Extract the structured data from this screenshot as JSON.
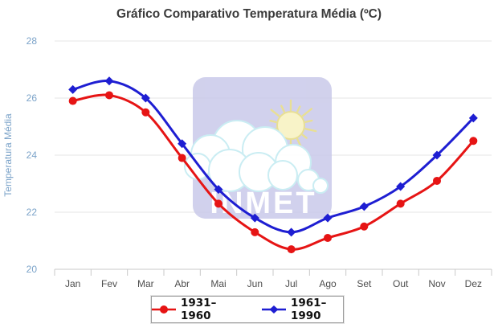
{
  "chart_data": {
    "type": "line",
    "title": "Gráfico Comparativo Temperatura Média (ºC)",
    "ylabel": "Temperatura Média",
    "xlabel": "",
    "categories": [
      "Jan",
      "Fev",
      "Mar",
      "Abr",
      "Mai",
      "Jun",
      "Jul",
      "Ago",
      "Set",
      "Out",
      "Nov",
      "Dez"
    ],
    "series": [
      {
        "name": "1931–1960",
        "color": "#e61414",
        "marker": "circle",
        "values": [
          25.9,
          26.1,
          25.5,
          23.9,
          22.3,
          21.3,
          20.7,
          21.1,
          21.5,
          22.3,
          23.1,
          24.5
        ]
      },
      {
        "name": "1961–1990",
        "color": "#1e1ed2",
        "marker": "diamond",
        "values": [
          26.3,
          26.6,
          26.0,
          24.4,
          22.8,
          21.8,
          21.3,
          21.8,
          22.2,
          22.9,
          24.0,
          25.3
        ]
      }
    ],
    "ylim": [
      20,
      28
    ],
    "yticks": [
      20,
      22,
      24,
      26,
      28
    ],
    "grid": true,
    "legend_position": "bottom"
  },
  "axis_colors": {
    "y_text": "#7ba3c9",
    "x_text": "#4d4d4d",
    "grid": "#e5e5e5",
    "axis": "#c9c9c9"
  },
  "watermark": {
    "text": "INMET",
    "bg": "#c9c9e9",
    "sun_fill": "#f8f3c4",
    "sun_stroke": "#e7dd8c",
    "cloud_stroke": "#c6ecf2",
    "text_color": "#ffffff"
  }
}
